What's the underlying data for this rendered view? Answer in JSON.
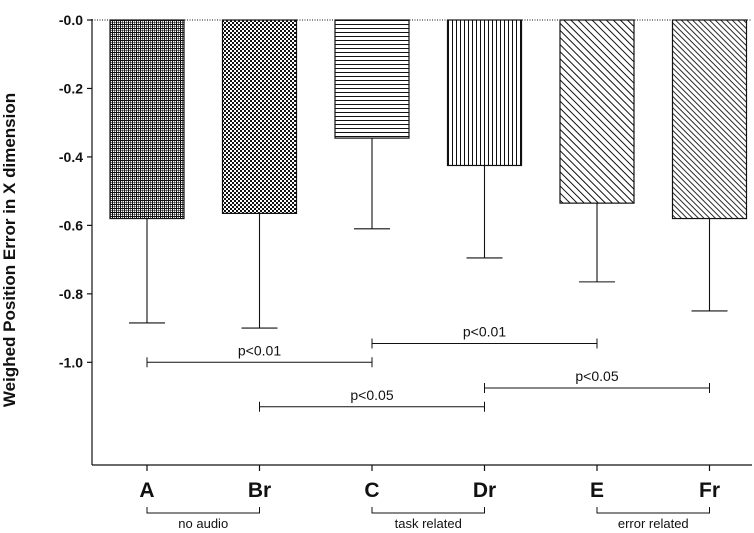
{
  "chart_data": {
    "type": "bar",
    "title": "",
    "xlabel": "",
    "ylabel": "Weighed Position Error in X dimension",
    "ylim": [
      -1.3,
      0.0
    ],
    "yticks": [
      0.0,
      -0.2,
      -0.4,
      -0.6,
      -0.8,
      -1.0
    ],
    "ytick_labels": [
      "-0.0",
      "-0.2",
      "-0.4",
      "-0.6",
      "-0.8",
      "-1.0"
    ],
    "grid": false,
    "legend": "none",
    "categories": [
      "A",
      "Br",
      "C",
      "Dr",
      "E",
      "Fr"
    ],
    "values": [
      -0.58,
      -0.565,
      -0.345,
      -0.425,
      -0.535,
      -0.58
    ],
    "error_lower": [
      -0.885,
      -0.9,
      -0.61,
      -0.695,
      -0.765,
      -0.85
    ],
    "patterns": [
      "grid-dense",
      "checker",
      "horizontal",
      "vertical",
      "diagonal-wide",
      "diagonal-narrow"
    ],
    "group_labels": [
      {
        "label": "no audio",
        "from": "A",
        "to": "Br"
      },
      {
        "label": "task related",
        "from": "C",
        "to": "Dr"
      },
      {
        "label": "error related",
        "from": "E",
        "to": "Fr"
      }
    ],
    "significance": [
      {
        "from": "A",
        "to": "C",
        "y": -1.0,
        "label": "p<0.01"
      },
      {
        "from": "C",
        "to": "E",
        "y": -0.945,
        "label": "p<0.01"
      },
      {
        "from": "Br",
        "to": "Dr",
        "y": -1.13,
        "label": "p<0.05"
      },
      {
        "from": "Dr",
        "to": "Fr",
        "y": -1.075,
        "label": "p<0.05"
      }
    ],
    "colors": {
      "bar_stroke": "#111111",
      "axis": "#111111",
      "background": "#ffffff"
    }
  }
}
